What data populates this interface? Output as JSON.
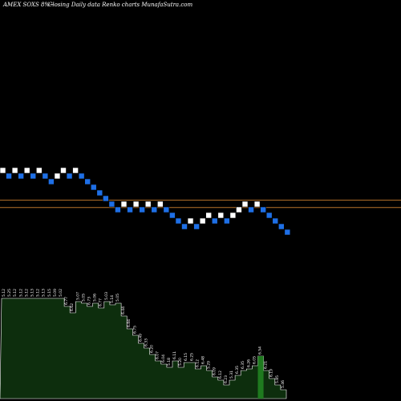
{
  "header": {
    "symbol_text": "AMEX  SOXS 8%~",
    "caption": "Closing Daily data  Renko  charts MunafaSutra.com"
  },
  "colors": {
    "background": "#000000",
    "up_brick": "#ffffff",
    "down_brick": "#1e6fe6",
    "ref_line": "#b8732a",
    "volume_fill": "#0d2e0d",
    "volume_outline": "#ffffff",
    "volume_highlight": "#1f7a1f"
  },
  "chart_data": {
    "type": "renko",
    "grid": false,
    "bricks": [
      {
        "index": 0,
        "level": 0,
        "dir": "up"
      },
      {
        "index": 1,
        "level": 1,
        "dir": "down"
      },
      {
        "index": 2,
        "level": 0,
        "dir": "up"
      },
      {
        "index": 3,
        "level": 1,
        "dir": "down"
      },
      {
        "index": 4,
        "level": 0,
        "dir": "up"
      },
      {
        "index": 5,
        "level": 1,
        "dir": "down"
      },
      {
        "index": 6,
        "level": 0,
        "dir": "up"
      },
      {
        "index": 7,
        "level": 1,
        "dir": "down"
      },
      {
        "index": 8,
        "level": 2,
        "dir": "down"
      },
      {
        "index": 9,
        "level": 1,
        "dir": "up"
      },
      {
        "index": 10,
        "level": 0,
        "dir": "up"
      },
      {
        "index": 11,
        "level": 1,
        "dir": "down"
      },
      {
        "index": 12,
        "level": 0,
        "dir": "up"
      },
      {
        "index": 13,
        "level": 1,
        "dir": "down"
      },
      {
        "index": 14,
        "level": 2,
        "dir": "down"
      },
      {
        "index": 15,
        "level": 3,
        "dir": "down"
      },
      {
        "index": 16,
        "level": 4,
        "dir": "down"
      },
      {
        "index": 17,
        "level": 5,
        "dir": "down"
      },
      {
        "index": 18,
        "level": 6,
        "dir": "down"
      },
      {
        "index": 19,
        "level": 7,
        "dir": "down"
      },
      {
        "index": 20,
        "level": 6,
        "dir": "up"
      },
      {
        "index": 21,
        "level": 7,
        "dir": "down"
      },
      {
        "index": 22,
        "level": 6,
        "dir": "up"
      },
      {
        "index": 23,
        "level": 7,
        "dir": "down"
      },
      {
        "index": 24,
        "level": 6,
        "dir": "up"
      },
      {
        "index": 25,
        "level": 7,
        "dir": "down"
      },
      {
        "index": 26,
        "level": 6,
        "dir": "up"
      },
      {
        "index": 27,
        "level": 7,
        "dir": "down"
      },
      {
        "index": 28,
        "level": 8,
        "dir": "down"
      },
      {
        "index": 29,
        "level": 9,
        "dir": "down"
      },
      {
        "index": 30,
        "level": 10,
        "dir": "down"
      },
      {
        "index": 31,
        "level": 9,
        "dir": "up"
      },
      {
        "index": 32,
        "level": 10,
        "dir": "down"
      },
      {
        "index": 33,
        "level": 9,
        "dir": "up"
      },
      {
        "index": 34,
        "level": 8,
        "dir": "up"
      },
      {
        "index": 35,
        "level": 9,
        "dir": "down"
      },
      {
        "index": 36,
        "level": 8,
        "dir": "up"
      },
      {
        "index": 37,
        "level": 9,
        "dir": "down"
      },
      {
        "index": 38,
        "level": 8,
        "dir": "up"
      },
      {
        "index": 39,
        "level": 7,
        "dir": "up"
      },
      {
        "index": 40,
        "level": 6,
        "dir": "up"
      },
      {
        "index": 41,
        "level": 7,
        "dir": "down"
      },
      {
        "index": 42,
        "level": 6,
        "dir": "up"
      },
      {
        "index": 43,
        "level": 7,
        "dir": "down"
      },
      {
        "index": 44,
        "level": 8,
        "dir": "down"
      },
      {
        "index": 45,
        "level": 9,
        "dir": "down"
      },
      {
        "index": 46,
        "level": 10,
        "dir": "down"
      },
      {
        "index": 47,
        "level": 11,
        "dir": "down"
      }
    ],
    "reference_lines": [
      5.3,
      6.6
    ],
    "volume_labels": [
      "5.12",
      "5.25",
      "5.12",
      "5.12",
      "5.12",
      "5.13",
      "5.12",
      "5.13",
      "5.15",
      "5.09",
      "5.02",
      "6.77",
      "6.62",
      "5.07",
      "5.05",
      "6.73",
      "5.06",
      "6.77",
      "5.03",
      "5.14",
      "5.05",
      "6.44",
      "6.84",
      "6.75",
      "6.49",
      "6.33",
      "6.20",
      "6.07",
      "6.04",
      "5.18",
      "6.11",
      "5.20",
      "6.15",
      "6.25",
      "6.12",
      "6.48",
      "5.29",
      "6.09",
      "6.12",
      "6.23",
      "5.31",
      "6.35",
      "6.35",
      "6.26",
      "6.05",
      "6.54",
      "6.21",
      "6.19",
      "5.85",
      "5.46"
    ]
  }
}
